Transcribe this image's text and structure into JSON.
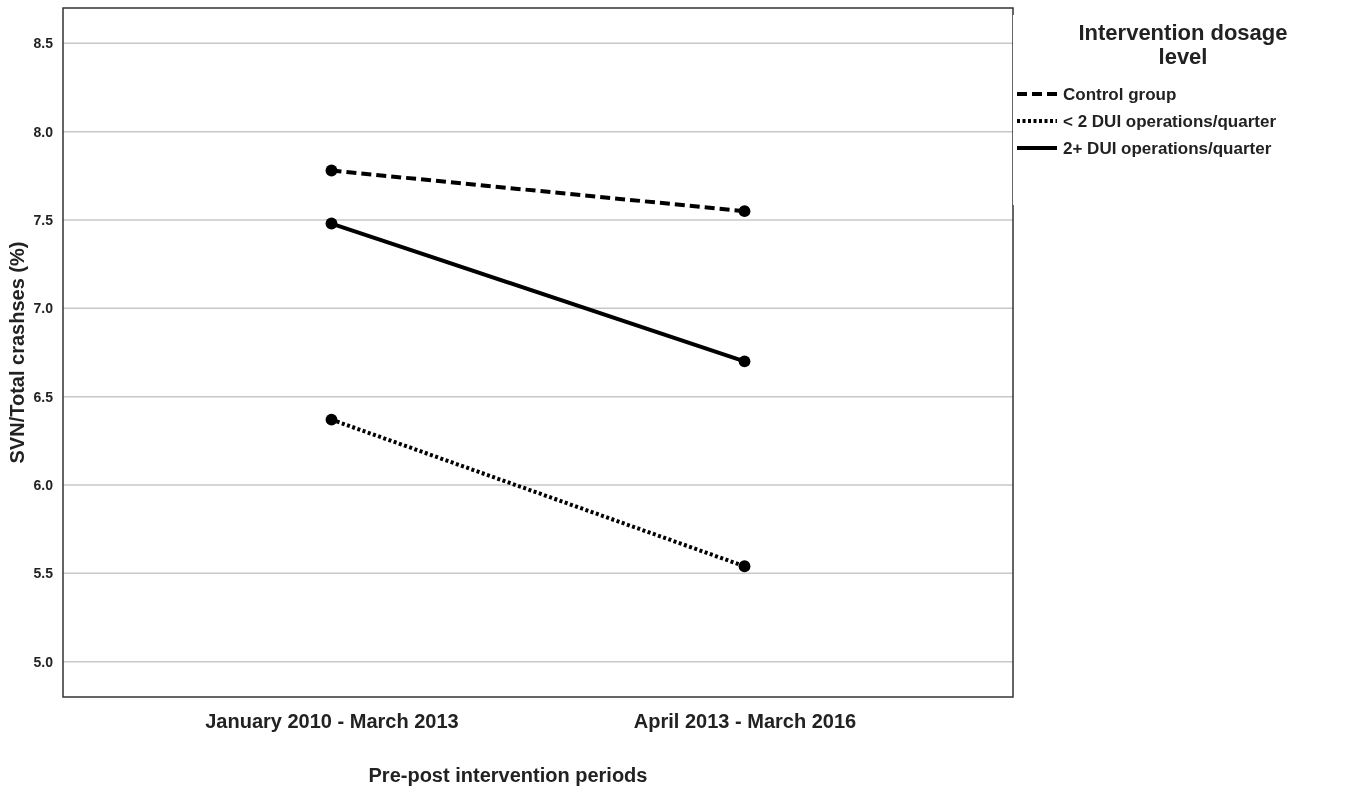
{
  "chart_data": {
    "type": "line",
    "xlabel": "Pre-post intervention periods",
    "ylabel": "SVN/Total crashses (%)",
    "legend_title": "Intervention dosage level",
    "categories": [
      "January 2010 - March 2013",
      "April 2013 - March 2016"
    ],
    "series": [
      {
        "name": "Control group",
        "color": "#000000",
        "line_style": "dashed",
        "values": [
          7.78,
          7.55
        ]
      },
      {
        "name": "< 2 DUI operations/quarter",
        "color": "#000000",
        "line_style": "dotted",
        "values": [
          6.37,
          5.54
        ]
      },
      {
        "name": "2+ DUI operations/quarter",
        "color": "#000000",
        "line_style": "solid",
        "values": [
          7.48,
          6.7
        ]
      }
    ],
    "ylim": [
      4.8,
      8.7
    ],
    "yticks": [
      {
        "value": 5,
        "label": "5.0"
      },
      5.5,
      {
        "value": 6,
        "label": "6.0"
      },
      6.5,
      {
        "value": 7,
        "label": "7.0"
      },
      7.5,
      {
        "value": 8,
        "label": "8.0"
      },
      8.5
    ],
    "grid": "y",
    "marker": "circle",
    "legend": "top right"
  }
}
